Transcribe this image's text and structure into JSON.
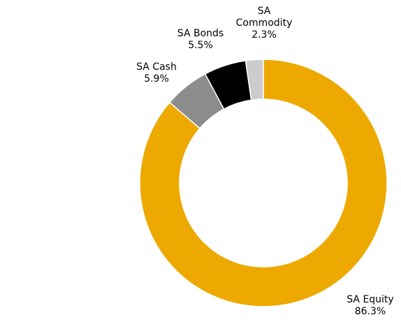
{
  "chart_data": {
    "type": "pie",
    "variant": "donut",
    "title": "",
    "legend": "none",
    "start_angle_deg": 0,
    "direction": "clockwise",
    "slices": [
      {
        "label_lines": [
          "SA Equity",
          "86.3%"
        ],
        "name": "SA Equity",
        "value": 86.3,
        "value_label": "86.3%",
        "color": "#EDA900"
      },
      {
        "label_lines": [
          "SA Cash",
          "5.9%"
        ],
        "name": "SA Cash",
        "value": 5.9,
        "value_label": "5.9%",
        "color": "#8C8C8C"
      },
      {
        "label_lines": [
          "SA Bonds",
          "5.5%"
        ],
        "name": "SA Bonds",
        "value": 5.5,
        "value_label": "5.5%",
        "color": "#000000"
      },
      {
        "label_lines": [
          "SA",
          "Commodity",
          "2.3%"
        ],
        "name": "SA Commodity",
        "value": 2.3,
        "value_label": "2.3%",
        "color": "#CCCCCC"
      }
    ]
  }
}
